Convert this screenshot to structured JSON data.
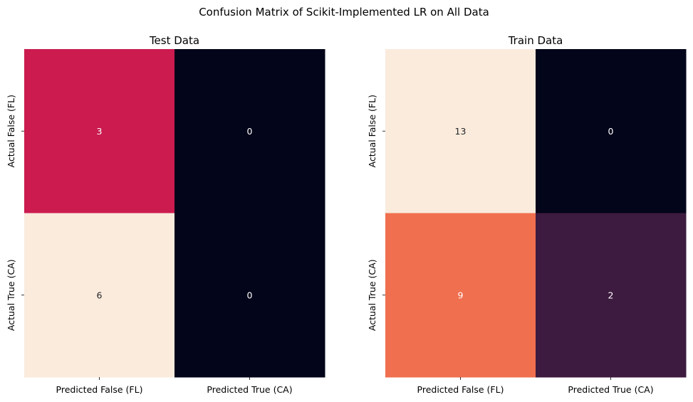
{
  "figure": {
    "title": "Confusion Matrix of Scikit-Implemented LR on All Data"
  },
  "chart_data": [
    {
      "type": "heatmap",
      "title": "Test Data",
      "x_categories": [
        "Predicted False (FL)",
        "Predicted True (CA)"
      ],
      "y_categories": [
        "Actual False (FL)",
        "Actual True (CA)"
      ],
      "values": [
        [
          3,
          0
        ],
        [
          6,
          0
        ]
      ],
      "colormap": "rocket",
      "colorbar": false,
      "cell_colors": [
        [
          "#cb1b4f",
          "#03051a"
        ],
        [
          "#faebdd",
          "#03051a"
        ]
      ],
      "annotation_colors": [
        [
          "#ffffff",
          "#ffffff"
        ],
        [
          "#262626",
          "#ffffff"
        ]
      ]
    },
    {
      "type": "heatmap",
      "title": "Train Data",
      "x_categories": [
        "Predicted False (FL)",
        "Predicted True (CA)"
      ],
      "y_categories": [
        "Actual False (FL)",
        "Actual True (CA)"
      ],
      "values": [
        [
          13,
          0
        ],
        [
          9,
          2
        ]
      ],
      "colormap": "rocket",
      "colorbar": false,
      "cell_colors": [
        [
          "#faebdd",
          "#03051a"
        ],
        [
          "#f06f4e",
          "#3d1a3f"
        ]
      ],
      "annotation_colors": [
        [
          "#262626",
          "#ffffff"
        ],
        [
          "#ffffff",
          "#ffffff"
        ]
      ]
    }
  ]
}
